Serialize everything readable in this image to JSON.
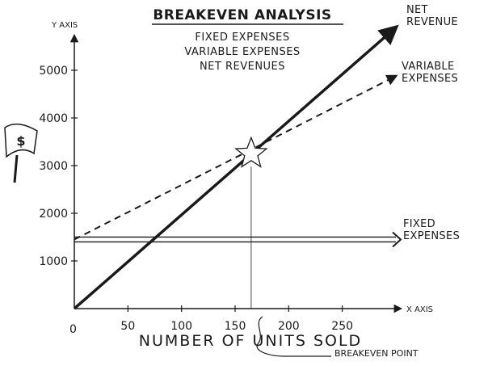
{
  "chart_data": {
    "type": "line",
    "title": "BREAKEVEN ANALYSIS",
    "subtitle": [
      "FIXED EXPENSES",
      "VARIABLE EXPENSES",
      "NET REVENUES"
    ],
    "xlabel": "NUMBER OF UNITS SOLD",
    "ylabel": "",
    "x_axis_label": "X AXIS",
    "y_axis_label": "Y AXIS",
    "origin_label": "0",
    "x_ticks": [
      50,
      100,
      150,
      200,
      250
    ],
    "y_ticks": [
      1000,
      2000,
      3000,
      4000,
      5000
    ],
    "xlim": [
      0,
      300
    ],
    "ylim": [
      0,
      5800
    ],
    "series": [
      {
        "name": "NET REVENUE",
        "label_lines": [
          "NET",
          "REVENUE"
        ],
        "style": "solid",
        "x": [
          0,
          300
        ],
        "y": [
          0,
          5900
        ]
      },
      {
        "name": "VARIABLE EXPENSES",
        "label_lines": [
          "VARIABLE",
          "EXPENSES"
        ],
        "style": "dashed",
        "x": [
          0,
          300
        ],
        "y": [
          1450,
          4880
        ]
      },
      {
        "name": "FIXED EXPENSES",
        "label_lines": [
          "FIXED",
          "EXPENSES"
        ],
        "style": "solid-double",
        "x": [
          0,
          300
        ],
        "y": [
          1450,
          1450
        ]
      }
    ],
    "annotations": [
      {
        "text": "BREAKEVEN POINT",
        "x": 165,
        "y": 3250
      }
    ],
    "grid": false,
    "legend": "none",
    "colors": {
      "ink": "#1a1a1a",
      "background": "#ffffff"
    },
    "icons": [
      "dollar-flag-icon",
      "star-icon"
    ]
  }
}
